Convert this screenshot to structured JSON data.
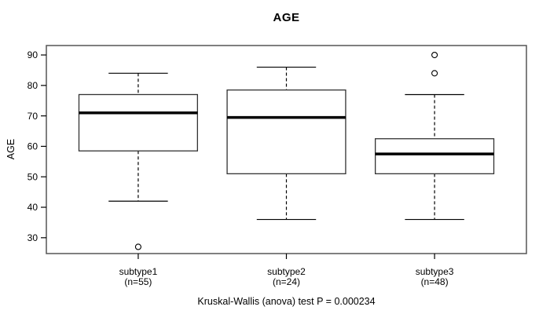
{
  "chart_data": {
    "type": "boxplot",
    "title": "AGE",
    "xlabel": "",
    "ylabel": "AGE",
    "caption": "Kruskal-Wallis (anova) test P = 0.000234",
    "ylim": [
      24.8,
      93.1
    ],
    "yticks": [
      30,
      40,
      50,
      60,
      70,
      80,
      90
    ],
    "grid": false,
    "legend": "none",
    "categories": [
      "subtype1",
      "subtype2",
      "subtype3"
    ],
    "group_sizes": [
      55,
      24,
      48
    ],
    "boxes": [
      {
        "category": "subtype1",
        "sublabel": "(n=55)",
        "n": 55,
        "whisker_low": 42,
        "q1": 58.5,
        "median": 71,
        "q3": 77,
        "whisker_high": 84,
        "outliers": [
          27
        ]
      },
      {
        "category": "subtype2",
        "sublabel": "(n=24)",
        "n": 24,
        "whisker_low": 36,
        "q1": 51,
        "median": 69.5,
        "q3": 78.5,
        "whisker_high": 86,
        "outliers": []
      },
      {
        "category": "subtype3",
        "sublabel": "(n=48)",
        "n": 48,
        "whisker_low": 36,
        "q1": 51,
        "median": 57.5,
        "q3": 62.5,
        "whisker_high": 77,
        "outliers": [
          84,
          90
        ]
      }
    ],
    "colors": {
      "line": "#000000",
      "box_border": "#333333",
      "median": "#000000",
      "box_fill": "#ffffff",
      "frame": "#555555",
      "background": "#ffffff"
    }
  }
}
